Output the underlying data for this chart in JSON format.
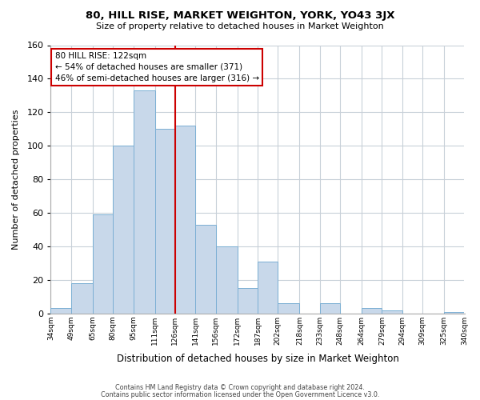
{
  "title": "80, HILL RISE, MARKET WEIGHTON, YORK, YO43 3JX",
  "subtitle": "Size of property relative to detached houses in Market Weighton",
  "xlabel": "Distribution of detached houses by size in Market Weighton",
  "ylabel": "Number of detached properties",
  "bar_edges": [
    34,
    49,
    65,
    80,
    95,
    111,
    126,
    141,
    156,
    172,
    187,
    202,
    218,
    233,
    248,
    264,
    279,
    294,
    309,
    325,
    340
  ],
  "bar_heights": [
    3,
    18,
    59,
    100,
    133,
    110,
    112,
    53,
    40,
    15,
    31,
    6,
    0,
    6,
    0,
    3,
    2,
    0,
    0,
    1
  ],
  "tick_labels": [
    "34sqm",
    "49sqm",
    "65sqm",
    "80sqm",
    "95sqm",
    "111sqm",
    "126sqm",
    "141sqm",
    "156sqm",
    "172sqm",
    "187sqm",
    "202sqm",
    "218sqm",
    "233sqm",
    "248sqm",
    "264sqm",
    "279sqm",
    "294sqm",
    "309sqm",
    "325sqm",
    "340sqm"
  ],
  "bar_color": "#c8d8ea",
  "bar_edge_color": "#7bafd4",
  "vline_x": 126,
  "vline_color": "#cc0000",
  "annotation_line1": "80 HILL RISE: 122sqm",
  "annotation_line2": "← 54% of detached houses are smaller (371)",
  "annotation_line3": "46% of semi-detached houses are larger (316) →",
  "annotation_box_color": "#ffffff",
  "annotation_box_edge": "#cc0000",
  "ylim": [
    0,
    160
  ],
  "yticks": [
    0,
    20,
    40,
    60,
    80,
    100,
    120,
    140,
    160
  ],
  "footer1": "Contains HM Land Registry data © Crown copyright and database right 2024.",
  "footer2": "Contains public sector information licensed under the Open Government Licence v3.0.",
  "bg_color": "#ffffff",
  "grid_color": "#c8d0d8"
}
